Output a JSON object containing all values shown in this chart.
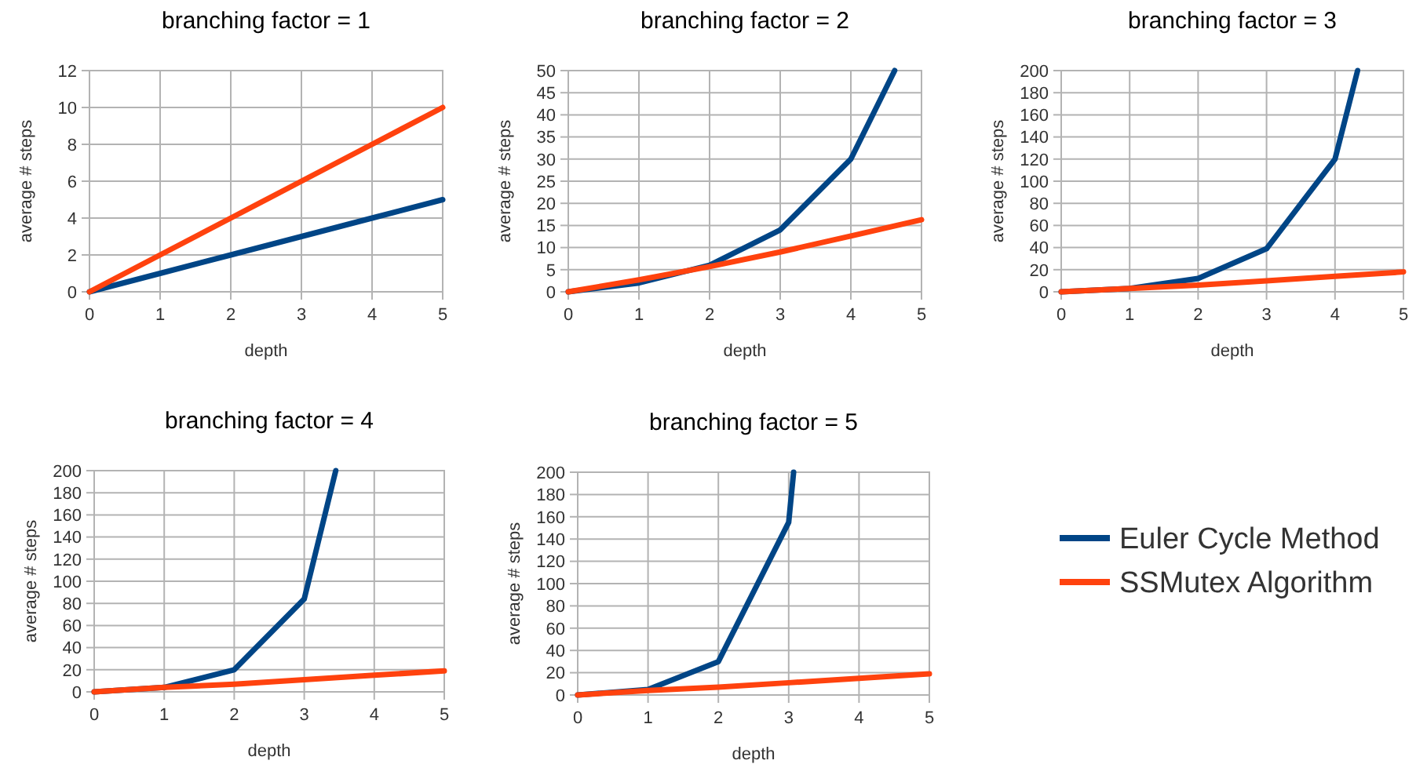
{
  "chart_data": [
    {
      "type": "line",
      "title": "branching factor = 1",
      "xlabel": "depth",
      "ylabel": "average # steps",
      "xlim": [
        0,
        5
      ],
      "xticks": [
        0,
        1,
        2,
        3,
        4,
        5
      ],
      "ylim": [
        0,
        12
      ],
      "yticks": [
        0,
        2,
        4,
        6,
        8,
        10,
        12
      ],
      "grid": true,
      "legend": false,
      "series": [
        {
          "color": "#004586",
          "x": [
            0,
            1,
            2,
            3,
            4,
            5
          ],
          "values": [
            0,
            1,
            2,
            3,
            4,
            5
          ]
        },
        {
          "color": "#ff420e",
          "x": [
            0,
            1,
            2,
            3,
            4,
            5
          ],
          "values": [
            0,
            2,
            4,
            6,
            8,
            10
          ]
        }
      ]
    },
    {
      "type": "line",
      "title": "branching factor = 2",
      "xlabel": "depth",
      "ylabel": "average # steps",
      "xlim": [
        0,
        5
      ],
      "xticks": [
        0,
        1,
        2,
        3,
        4,
        5
      ],
      "ylim": [
        0,
        50
      ],
      "yticks": [
        0,
        5,
        10,
        15,
        20,
        25,
        30,
        35,
        40,
        45,
        50
      ],
      "grid": true,
      "legend": false,
      "series": [
        {
          "color": "#004586",
          "x": [
            0,
            1,
            2,
            3,
            4,
            4.62
          ],
          "values": [
            0,
            2,
            6,
            14,
            30,
            50
          ]
        },
        {
          "color": "#ff420e",
          "x": [
            0,
            1,
            2,
            3,
            4,
            5
          ],
          "values": [
            0,
            2.7,
            5.7,
            9,
            12.6,
            16.3
          ]
        }
      ]
    },
    {
      "type": "line",
      "title": "branching factor = 3",
      "xlabel": "depth",
      "ylabel": "average # steps",
      "xlim": [
        0,
        5
      ],
      "xticks": [
        0,
        1,
        2,
        3,
        4,
        5
      ],
      "ylim": [
        0,
        200
      ],
      "yticks": [
        0,
        20,
        40,
        60,
        80,
        100,
        120,
        140,
        160,
        180,
        200
      ],
      "grid": true,
      "legend": false,
      "series": [
        {
          "color": "#004586",
          "x": [
            0,
            1,
            2,
            3,
            4,
            4.33
          ],
          "values": [
            0,
            3,
            12,
            39,
            120,
            200
          ]
        },
        {
          "color": "#ff420e",
          "x": [
            0,
            1,
            2,
            3,
            4,
            5
          ],
          "values": [
            0,
            3,
            6,
            10,
            14,
            18
          ]
        }
      ]
    },
    {
      "type": "line",
      "title": "branching factor = 4",
      "xlabel": "depth",
      "ylabel": "average # steps",
      "xlim": [
        0,
        5
      ],
      "xticks": [
        0,
        1,
        2,
        3,
        4,
        5
      ],
      "ylim": [
        0,
        200
      ],
      "yticks": [
        0,
        20,
        40,
        60,
        80,
        100,
        120,
        140,
        160,
        180,
        200
      ],
      "grid": true,
      "legend": false,
      "series": [
        {
          "color": "#004586",
          "x": [
            0,
            1,
            2,
            3,
            3.45
          ],
          "values": [
            0,
            4,
            20,
            84,
            200
          ]
        },
        {
          "color": "#ff420e",
          "x": [
            0,
            1,
            2,
            3,
            4,
            5
          ],
          "values": [
            0,
            4,
            7,
            11,
            15,
            19
          ]
        }
      ]
    },
    {
      "type": "line",
      "title": "branching factor = 5",
      "xlabel": "depth",
      "ylabel": "average # steps",
      "xlim": [
        0,
        5
      ],
      "xticks": [
        0,
        1,
        2,
        3,
        4,
        5
      ],
      "ylim": [
        0,
        200
      ],
      "yticks": [
        0,
        20,
        40,
        60,
        80,
        100,
        120,
        140,
        160,
        180,
        200
      ],
      "grid": true,
      "legend": "right",
      "series": [
        {
          "name": "Euler Cycle Method",
          "color": "#004586",
          "x": [
            0,
            1,
            2,
            3,
            3.07
          ],
          "values": [
            0,
            5,
            30,
            155,
            200
          ]
        },
        {
          "name": "SSMutex Algorithm",
          "color": "#ff420e",
          "x": [
            0,
            1,
            2,
            3,
            4,
            5
          ],
          "values": [
            0,
            4,
            7,
            11,
            15,
            19
          ]
        }
      ]
    }
  ]
}
